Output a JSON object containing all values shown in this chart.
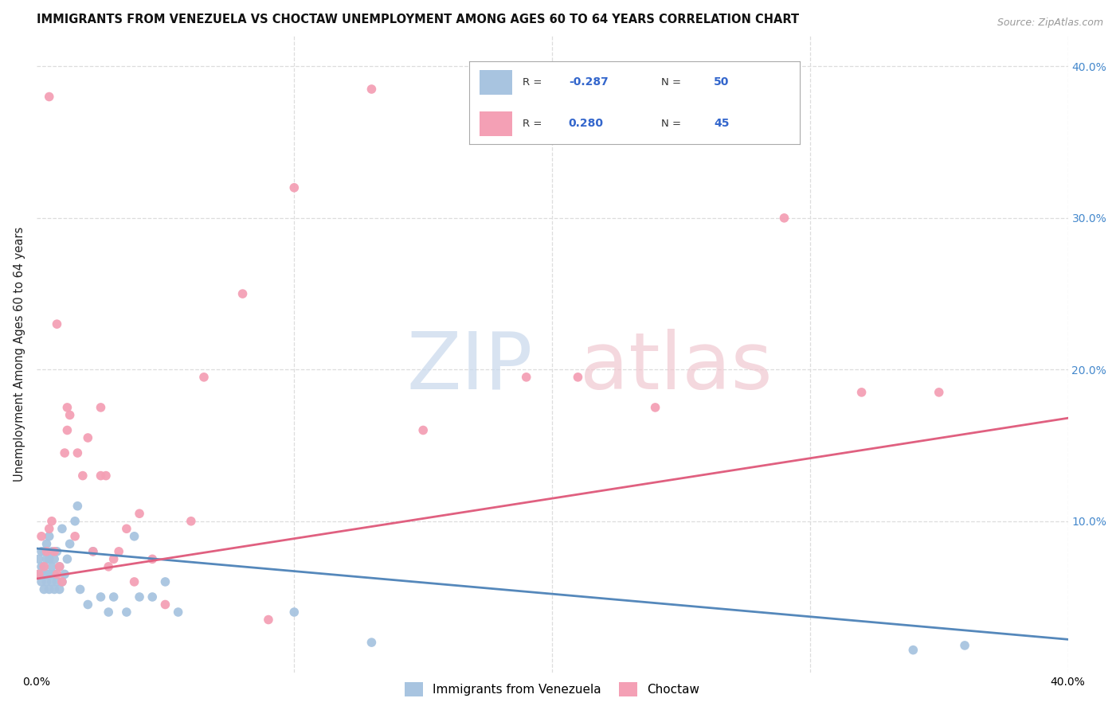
{
  "title": "IMMIGRANTS FROM VENEZUELA VS CHOCTAW UNEMPLOYMENT AMONG AGES 60 TO 64 YEARS CORRELATION CHART",
  "source": "Source: ZipAtlas.com",
  "ylabel": "Unemployment Among Ages 60 to 64 years",
  "xlim": [
    0.0,
    0.4
  ],
  "ylim": [
    0.0,
    0.42
  ],
  "x_ticks": [
    0.0,
    0.1,
    0.2,
    0.3,
    0.4
  ],
  "x_tick_labels": [
    "0.0%",
    "",
    "",
    "",
    "40.0%"
  ],
  "y_ticks_right": [
    0.1,
    0.2,
    0.3,
    0.4
  ],
  "y_tick_labels_right": [
    "10.0%",
    "20.0%",
    "30.0%",
    "40.0%"
  ],
  "background_color": "#ffffff",
  "grid_color": "#dddddd",
  "legend_labels": [
    "Immigrants from Venezuela",
    "Choctaw"
  ],
  "watermark_zip_color": "#c8d8ec",
  "watermark_atlas_color": "#f0c8d0",
  "series": [
    {
      "name": "Immigrants from Venezuela",
      "color": "#a8c4e0",
      "R": -0.287,
      "N": 50,
      "line_color": "#5588bb",
      "line_style": "solid",
      "line_start_y": 0.082,
      "line_end_y": 0.022,
      "points_x": [
        0.001,
        0.001,
        0.002,
        0.002,
        0.002,
        0.003,
        0.003,
        0.003,
        0.003,
        0.004,
        0.004,
        0.004,
        0.004,
        0.005,
        0.005,
        0.005,
        0.005,
        0.006,
        0.006,
        0.006,
        0.007,
        0.007,
        0.007,
        0.008,
        0.008,
        0.009,
        0.009,
        0.01,
        0.01,
        0.011,
        0.012,
        0.013,
        0.015,
        0.016,
        0.017,
        0.02,
        0.022,
        0.025,
        0.028,
        0.03,
        0.035,
        0.038,
        0.04,
        0.045,
        0.05,
        0.055,
        0.1,
        0.13,
        0.34,
        0.36
      ],
      "points_y": [
        0.065,
        0.075,
        0.06,
        0.07,
        0.08,
        0.055,
        0.065,
        0.07,
        0.08,
        0.06,
        0.065,
        0.075,
        0.085,
        0.055,
        0.065,
        0.075,
        0.09,
        0.06,
        0.07,
        0.08,
        0.055,
        0.065,
        0.075,
        0.06,
        0.08,
        0.055,
        0.07,
        0.06,
        0.095,
        0.065,
        0.075,
        0.085,
        0.1,
        0.11,
        0.055,
        0.045,
        0.08,
        0.05,
        0.04,
        0.05,
        0.04,
        0.09,
        0.05,
        0.05,
        0.06,
        0.04,
        0.04,
        0.02,
        0.015,
        0.018
      ]
    },
    {
      "name": "Choctaw",
      "color": "#f4a0b5",
      "R": 0.28,
      "N": 45,
      "line_color": "#e06080",
      "line_style": "solid",
      "line_start_y": 0.062,
      "line_end_y": 0.168,
      "points_x": [
        0.001,
        0.002,
        0.003,
        0.004,
        0.005,
        0.006,
        0.007,
        0.008,
        0.009,
        0.01,
        0.011,
        0.012,
        0.013,
        0.015,
        0.016,
        0.018,
        0.02,
        0.022,
        0.025,
        0.027,
        0.028,
        0.03,
        0.032,
        0.035,
        0.038,
        0.04,
        0.045,
        0.05,
        0.06,
        0.065,
        0.08,
        0.09,
        0.1,
        0.13,
        0.15,
        0.19,
        0.21,
        0.24,
        0.29,
        0.32,
        0.35,
        0.005,
        0.008,
        0.012,
        0.025
      ],
      "points_y": [
        0.065,
        0.09,
        0.07,
        0.08,
        0.095,
        0.1,
        0.08,
        0.065,
        0.07,
        0.06,
        0.145,
        0.16,
        0.17,
        0.09,
        0.145,
        0.13,
        0.155,
        0.08,
        0.175,
        0.13,
        0.07,
        0.075,
        0.08,
        0.095,
        0.06,
        0.105,
        0.075,
        0.045,
        0.1,
        0.195,
        0.25,
        0.035,
        0.32,
        0.385,
        0.16,
        0.195,
        0.195,
        0.175,
        0.3,
        0.185,
        0.185,
        0.38,
        0.23,
        0.175,
        0.13
      ]
    }
  ]
}
